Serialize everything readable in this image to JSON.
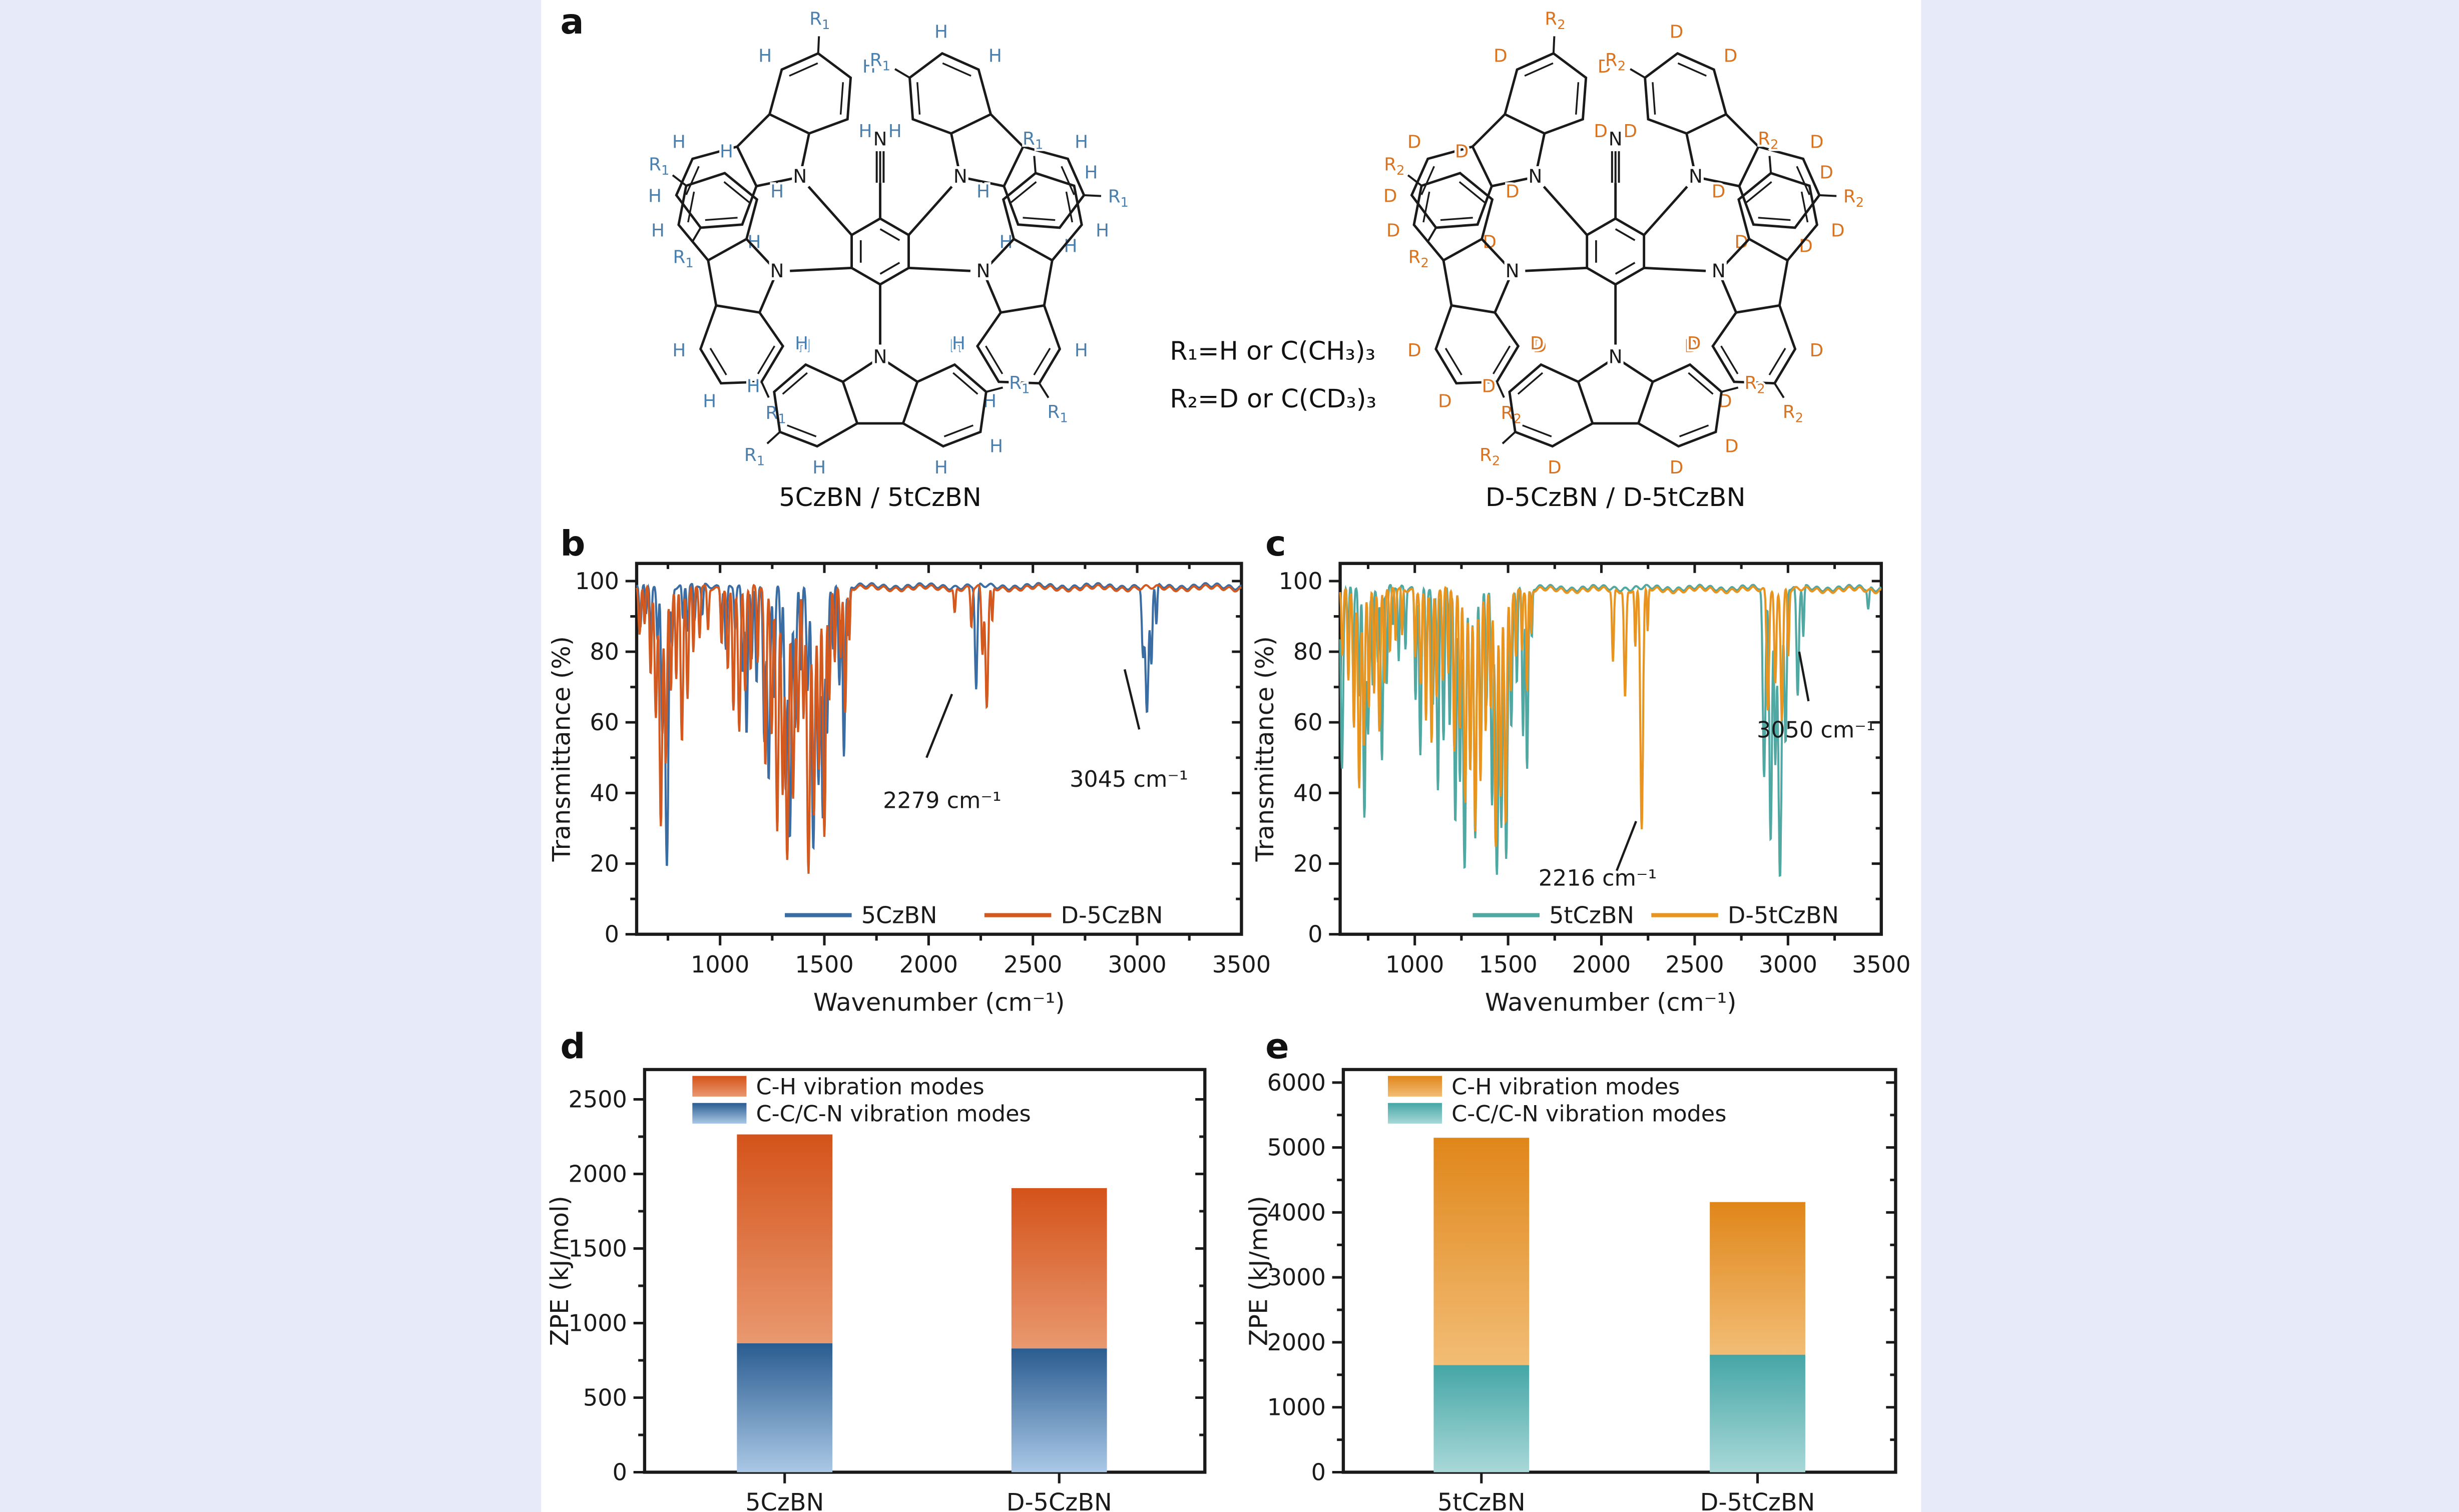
{
  "page": {
    "background": "#e7eaf8",
    "sheet_background": "#ffffff"
  },
  "panels": {
    "a": {
      "label": "a"
    },
    "b": {
      "label": "b"
    },
    "c": {
      "label": "c"
    },
    "d": {
      "label": "d"
    },
    "e": {
      "label": "e"
    }
  },
  "panel_a": {
    "r_definitions": [
      "R₁=H or C(CH₃)₃",
      "R₂=D or C(CD₃)₃"
    ],
    "molecules": [
      {
        "caption": "5CzBN / 5tCzBN",
        "atom_label": "H",
        "r_label": "R",
        "r_sub": "1",
        "nitrogen_label": "N",
        "label_color": "#4a7fae",
        "bond_color": "#1a1a1a"
      },
      {
        "caption": "D-5CzBN / D-5tCzBN",
        "atom_label": "D",
        "r_label": "R",
        "r_sub": "2",
        "nitrogen_label": "N",
        "label_color": "#d9731f",
        "bond_color": "#1a1a1a"
      }
    ]
  },
  "chart_data": [
    {
      "id": "b",
      "type": "line",
      "xlabel": "Wavenumber (cm⁻¹)",
      "ylabel": "Transmittance (%)",
      "xlim": [
        600,
        3500
      ],
      "ylim": [
        0,
        105
      ],
      "xticks": [
        1000,
        1500,
        2000,
        2500,
        3000,
        3500
      ],
      "xminor_step": 250,
      "yticks": [
        0,
        20,
        40,
        60,
        80,
        100
      ],
      "yminor_step": 10,
      "grid": false,
      "legend_position": "inside-bottom",
      "annotations": [
        {
          "text": "2279 cm⁻¹",
          "tx": 2065,
          "ty": 38,
          "line": [
            [
              1990,
              50
            ],
            [
              2112,
              68
            ]
          ]
        },
        {
          "text": "3045 cm⁻¹",
          "tx": 2960,
          "ty": 44,
          "line": [
            [
              2940,
              75
            ],
            [
              3010,
              58
            ]
          ]
        }
      ],
      "series": [
        {
          "name": "5CzBN",
          "color": "#3a6da3",
          "baseline": 98.5,
          "peaks": [
            [
              618,
              87,
              7
            ],
            [
              645,
              90,
              6
            ],
            [
              668,
              84,
              6
            ],
            [
              700,
              83,
              7
            ],
            [
              723,
              58,
              8
            ],
            [
              745,
              19,
              10
            ],
            [
              770,
              82,
              6
            ],
            [
              822,
              89,
              6
            ],
            [
              845,
              86,
              6
            ],
            [
              878,
              88,
              6
            ],
            [
              915,
              90,
              6
            ],
            [
              1005,
              89,
              6
            ],
            [
              1028,
              81,
              7
            ],
            [
              1072,
              87,
              6
            ],
            [
              1108,
              74,
              7
            ],
            [
              1127,
              57,
              8
            ],
            [
              1152,
              77,
              6
            ],
            [
              1175,
              71,
              7
            ],
            [
              1212,
              54,
              8
            ],
            [
              1233,
              44,
              9
            ],
            [
              1260,
              67,
              7
            ],
            [
              1292,
              79,
              6
            ],
            [
              1315,
              41,
              8
            ],
            [
              1335,
              27,
              9
            ],
            [
              1360,
              59,
              8
            ],
            [
              1388,
              74,
              7
            ],
            [
              1420,
              69,
              8
            ],
            [
              1447,
              23,
              10
            ],
            [
              1472,
              43,
              9
            ],
            [
              1493,
              32,
              9
            ],
            [
              1513,
              57,
              8
            ],
            [
              1542,
              81,
              6
            ],
            [
              1572,
              71,
              7
            ],
            [
              1594,
              51,
              8
            ],
            [
              1617,
              84,
              6
            ],
            [
              2228,
              69,
              8
            ],
            [
              3028,
              79,
              8
            ],
            [
              3047,
              62,
              10
            ],
            [
              3068,
              77,
              7
            ],
            [
              3092,
              87,
              6
            ]
          ]
        },
        {
          "name": "D-5CzBN",
          "color": "#d4591f",
          "baseline": 98,
          "peaks": [
            [
              614,
              85,
              7
            ],
            [
              638,
              87,
              6
            ],
            [
              667,
              74,
              7
            ],
            [
              692,
              61,
              8
            ],
            [
              716,
              31,
              9
            ],
            [
              740,
              49,
              8
            ],
            [
              764,
              69,
              7
            ],
            [
              790,
              73,
              6
            ],
            [
              817,
              54,
              8
            ],
            [
              844,
              67,
              7
            ],
            [
              872,
              79,
              6
            ],
            [
              902,
              84,
              6
            ],
            [
              942,
              86,
              6
            ],
            [
              1007,
              83,
              6
            ],
            [
              1037,
              75,
              7
            ],
            [
              1064,
              64,
              7
            ],
            [
              1092,
              57,
              8
            ],
            [
              1120,
              69,
              7
            ],
            [
              1147,
              74,
              6
            ],
            [
              1180,
              77,
              6
            ],
            [
              1217,
              47,
              8
            ],
            [
              1247,
              57,
              8
            ],
            [
              1274,
              29,
              9
            ],
            [
              1300,
              41,
              8
            ],
            [
              1322,
              21,
              10
            ],
            [
              1350,
              39,
              9
            ],
            [
              1374,
              57,
              8
            ],
            [
              1400,
              61,
              7
            ],
            [
              1424,
              17,
              10
            ],
            [
              1450,
              33,
              9
            ],
            [
              1474,
              47,
              8
            ],
            [
              1500,
              27,
              9
            ],
            [
              1524,
              67,
              7
            ],
            [
              1550,
              77,
              6
            ],
            [
              1578,
              79,
              6
            ],
            [
              1600,
              63,
              7
            ],
            [
              1620,
              83,
              5
            ],
            [
              2125,
              91,
              6
            ],
            [
              2205,
              87,
              6
            ],
            [
              2258,
              79,
              7
            ],
            [
              2279,
              64,
              9
            ],
            [
              2305,
              88,
              5
            ]
          ]
        }
      ]
    },
    {
      "id": "c",
      "type": "line",
      "xlabel": "Wavenumber (cm⁻¹)",
      "ylabel": "Transmittance (%)",
      "xlim": [
        600,
        3500
      ],
      "ylim": [
        0,
        105
      ],
      "xticks": [
        1000,
        1500,
        2000,
        2500,
        3000,
        3500
      ],
      "xminor_step": 250,
      "yticks": [
        0,
        20,
        40,
        60,
        80,
        100
      ],
      "yminor_step": 10,
      "grid": false,
      "legend_position": "inside-bottom",
      "annotations": [
        {
          "text": "2216 cm⁻¹",
          "tx": 1980,
          "ty": 16,
          "line": [
            [
              2082,
              18
            ],
            [
              2186,
              32
            ]
          ]
        },
        {
          "text": "3050 cm⁻¹",
          "tx": 3150,
          "ty": 58,
          "line": [
            [
              3060,
              80
            ],
            [
              3110,
              66
            ]
          ]
        }
      ],
      "series": [
        {
          "name": "5tCzBN",
          "color": "#4fa8a2",
          "baseline": 98,
          "peaks": [
            [
              610,
              47,
              9
            ],
            [
              642,
              81,
              6
            ],
            [
              670,
              74,
              6
            ],
            [
              702,
              67,
              7
            ],
            [
              730,
              34,
              9
            ],
            [
              750,
              57,
              8
            ],
            [
              774,
              71,
              6
            ],
            [
              802,
              77,
              6
            ],
            [
              824,
              49,
              8
            ],
            [
              850,
              71,
              6
            ],
            [
              882,
              87,
              5
            ],
            [
              914,
              77,
              6
            ],
            [
              950,
              81,
              6
            ],
            [
              1004,
              67,
              7
            ],
            [
              1030,
              51,
              8
            ],
            [
              1062,
              69,
              6
            ],
            [
              1097,
              64,
              7
            ],
            [
              1124,
              41,
              8
            ],
            [
              1154,
              54,
              8
            ],
            [
              1187,
              59,
              7
            ],
            [
              1217,
              31,
              9
            ],
            [
              1242,
              44,
              8
            ],
            [
              1267,
              18,
              10
            ],
            [
              1297,
              47,
              8
            ],
            [
              1324,
              27,
              9
            ],
            [
              1354,
              51,
              8
            ],
            [
              1384,
              64,
              7
            ],
            [
              1414,
              37,
              8
            ],
            [
              1440,
              16,
              11
            ],
            [
              1464,
              31,
              9
            ],
            [
              1490,
              21,
              10
            ],
            [
              1517,
              59,
              8
            ],
            [
              1547,
              71,
              6
            ],
            [
              1580,
              57,
              7
            ],
            [
              1602,
              47,
              8
            ],
            [
              1627,
              84,
              5
            ],
            [
              2872,
              44,
              10
            ],
            [
              2907,
              27,
              10
            ],
            [
              2932,
              49,
              8
            ],
            [
              2957,
              17,
              12
            ],
            [
              2987,
              54,
              9
            ],
            [
              3052,
              67,
              9
            ],
            [
              3082,
              84,
              6
            ],
            [
              3430,
              92,
              7
            ]
          ]
        },
        {
          "name": "D-5tCzBN",
          "color": "#e8941f",
          "baseline": 97.5,
          "peaks": [
            [
              612,
              79,
              7
            ],
            [
              644,
              71,
              7
            ],
            [
              674,
              59,
              8
            ],
            [
              702,
              41,
              9
            ],
            [
              727,
              54,
              8
            ],
            [
              754,
              64,
              7
            ],
            [
              782,
              69,
              6
            ],
            [
              810,
              57,
              8
            ],
            [
              837,
              71,
              6
            ],
            [
              867,
              79,
              6
            ],
            [
              897,
              83,
              5
            ],
            [
              932,
              84,
              5
            ],
            [
              1002,
              79,
              6
            ],
            [
              1032,
              71,
              7
            ],
            [
              1060,
              61,
              7
            ],
            [
              1090,
              54,
              8
            ],
            [
              1117,
              67,
              7
            ],
            [
              1150,
              71,
              6
            ],
            [
              1180,
              74,
              6
            ],
            [
              1212,
              51,
              8
            ],
            [
              1242,
              59,
              7
            ],
            [
              1270,
              37,
              9
            ],
            [
              1297,
              47,
              8
            ],
            [
              1324,
              29,
              9
            ],
            [
              1352,
              44,
              8
            ],
            [
              1380,
              57,
              7
            ],
            [
              1407,
              64,
              7
            ],
            [
              1434,
              24,
              10
            ],
            [
              1460,
              39,
              8
            ],
            [
              1487,
              31,
              9
            ],
            [
              1514,
              69,
              7
            ],
            [
              1542,
              79,
              6
            ],
            [
              1574,
              81,
              5
            ],
            [
              1602,
              69,
              6
            ],
            [
              1624,
              85,
              5
            ],
            [
              2062,
              77,
              7
            ],
            [
              2127,
              67,
              8
            ],
            [
              2182,
              81,
              6
            ],
            [
              2216,
              30,
              10
            ],
            [
              2248,
              85,
              5
            ],
            [
              2892,
              64,
              9
            ],
            [
              2932,
              71,
              8
            ],
            [
              2967,
              61,
              9
            ],
            [
              3002,
              79,
              6
            ]
          ]
        }
      ]
    },
    {
      "id": "d",
      "type": "bar",
      "ylabel": "ZPE (kJ/mol)",
      "categories": [
        "5CzBN",
        "D-5CzBN"
      ],
      "ylim": [
        0,
        2700
      ],
      "yticks": [
        0,
        500,
        1000,
        1500,
        2000,
        2500
      ],
      "yminor_step": 250,
      "grid": false,
      "legend_position": "inside-top",
      "legend": [
        "C-H vibration modes",
        "C-C/C-N vibration modes"
      ],
      "series": [
        {
          "name": "C-C/C-N vibration modes",
          "values": [
            865,
            830
          ],
          "color_top": "#2a5c90",
          "color_bottom": "#aac8e6"
        },
        {
          "name": "C-H vibration modes",
          "values": [
            1400,
            1075
          ],
          "color_top": "#d4531a",
          "color_bottom": "#e9986f"
        }
      ],
      "totals": [
        2265,
        1905
      ]
    },
    {
      "id": "e",
      "type": "bar",
      "ylabel": "ZPE (kJ/mol)",
      "categories": [
        "5tCzBN",
        "D-5tCzBN"
      ],
      "ylim": [
        0,
        6200
      ],
      "yticks": [
        0,
        1000,
        2000,
        3000,
        4000,
        5000,
        6000
      ],
      "yminor_step": 500,
      "grid": false,
      "legend_position": "inside-top",
      "legend": [
        "C-H vibration modes",
        "C-C/C-N vibration modes"
      ],
      "series": [
        {
          "name": "C-C/C-N vibration modes",
          "values": [
            1650,
            1810
          ],
          "color_top": "#45a6a6",
          "color_bottom": "#a9d8d8"
        },
        {
          "name": "C-H vibration modes",
          "values": [
            3500,
            2350
          ],
          "color_top": "#e0861a",
          "color_bottom": "#f2bd75"
        }
      ],
      "totals": [
        5150,
        4160
      ]
    }
  ]
}
